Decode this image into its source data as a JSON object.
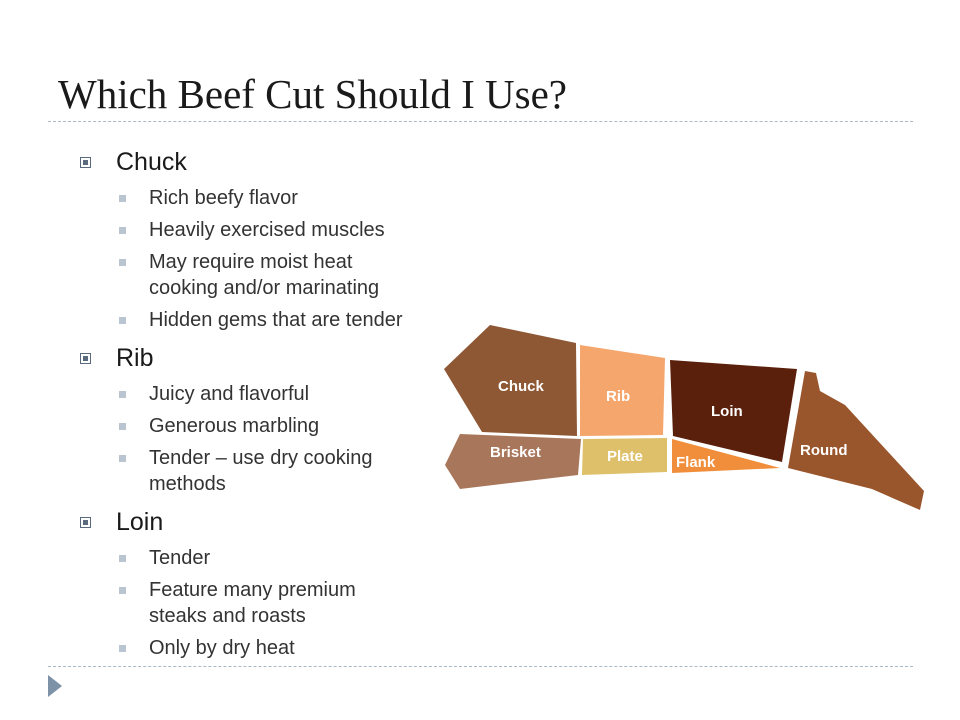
{
  "slide": {
    "title": "Which Beef Cut Should I Use?"
  },
  "sections": [
    {
      "heading": "Chuck",
      "points": [
        [
          "Rich beefy flavor"
        ],
        [
          "Heavily exercised muscles"
        ],
        [
          "May require moist heat",
          "cooking and/or marinating"
        ],
        [
          "Hidden gems that are tender"
        ]
      ]
    },
    {
      "heading": "Rib",
      "points": [
        [
          "Juicy and flavorful"
        ],
        [
          "Generous marbling"
        ],
        [
          "Tender – use dry cooking",
          "methods"
        ]
      ]
    },
    {
      "heading": "Loin",
      "points": [
        [
          "Tender"
        ],
        [
          "Feature many premium",
          "steaks and roasts"
        ],
        [
          "Only by dry heat"
        ]
      ]
    }
  ],
  "beef_diagram": {
    "cuts": [
      {
        "id": "chuck",
        "label": "Chuck",
        "color": "#8e5835"
      },
      {
        "id": "rib",
        "label": "Rib",
        "color": "#f5a66c"
      },
      {
        "id": "loin",
        "label": "Loin",
        "color": "#5a200c"
      },
      {
        "id": "brisket",
        "label": "Brisket",
        "color": "#a8765a"
      },
      {
        "id": "plate",
        "label": "Plate",
        "color": "#dfc06a"
      },
      {
        "id": "flank",
        "label": "Flank",
        "color": "#f18e3c"
      },
      {
        "id": "round",
        "label": "Round",
        "color": "#99552c"
      }
    ]
  },
  "theme": {
    "accent": "#7d91a7",
    "rule_color": "#a9b9c6",
    "bullet_color": "#b9c6d1"
  }
}
